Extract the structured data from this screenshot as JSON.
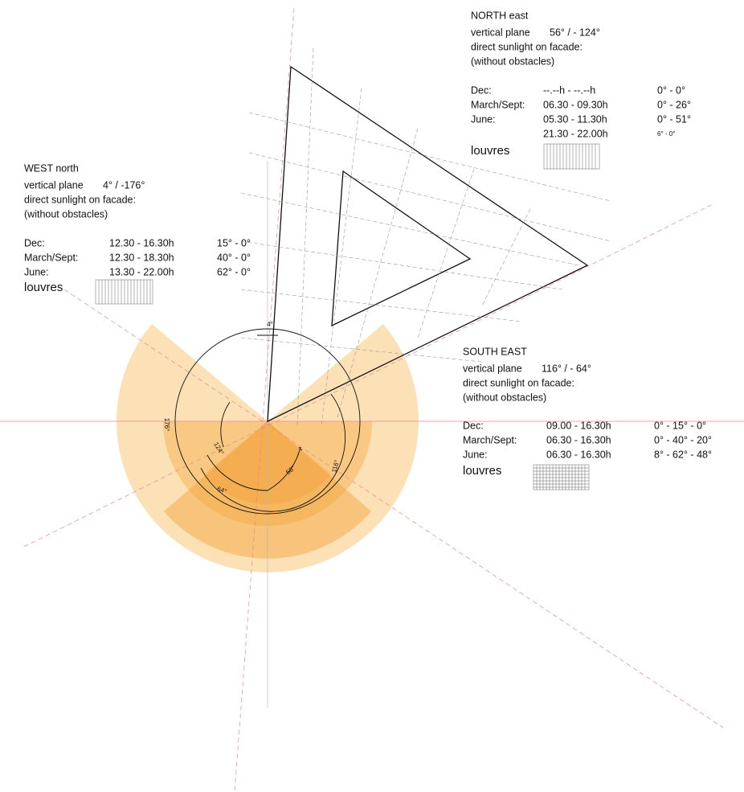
{
  "facades": [
    {
      "heading": "NORTH east",
      "plane_label": "vertical  plane",
      "plane_value": "56° / - 124°",
      "lines": [
        "direct sunlight on facade:",
        "(without obstacles)"
      ],
      "rows": [
        {
          "label": "Dec:",
          "time": "--.--h - --.--h",
          "angle": "0° - 0°"
        },
        {
          "label": "March/Sept:",
          "time": "06.30  -  09.30h",
          "angle": "0° - 26°"
        },
        {
          "label": "June:",
          "time": "05.30  -  11.30h",
          "angle": "0° - 51°"
        },
        {
          "time": "21.30  -  22.00h",
          "angle": "6° - 0°"
        }
      ],
      "louvres": "louvres"
    },
    {
      "heading": "WEST north",
      "plane_label": "vertical  plane",
      "plane_value": "4° / -176°",
      "lines": [
        "direct sunlight on facade:",
        "(without obstacles)"
      ],
      "rows": [
        {
          "label": "Dec:",
          "time": "12.30  -  16.30h",
          "angle": "15° - 0°"
        },
        {
          "label": "March/Sept:",
          "time": "12.30  -  18.30h",
          "angle": "40° - 0°"
        },
        {
          "label": "June:",
          "time": "13.30  -  22.00h",
          "angle": "62° - 0°"
        }
      ],
      "louvres": "louvres"
    },
    {
      "heading": "SOUTH  EAST",
      "plane_label": "vertical  plane",
      "plane_value": "116° / - 64°",
      "lines": [
        "direct sunlight on facade:",
        "(without obstacles)"
      ],
      "rows": [
        {
          "label": "Dec:",
          "time": "09.00  -  16.30h",
          "angle": "0° - 15° - 0°"
        },
        {
          "label": "March/Sept:",
          "time": "06.30  -  16.30h",
          "angle": "0° - 40° - 20°"
        },
        {
          "label": "June:",
          "time": "06.30  -  16.30h",
          "angle": "8° - 62° - 48°"
        }
      ],
      "louvres": "louvres"
    }
  ],
  "angle_labels": [
    "4°",
    "176°",
    "124°",
    "64°",
    "56°",
    "116°"
  ]
}
